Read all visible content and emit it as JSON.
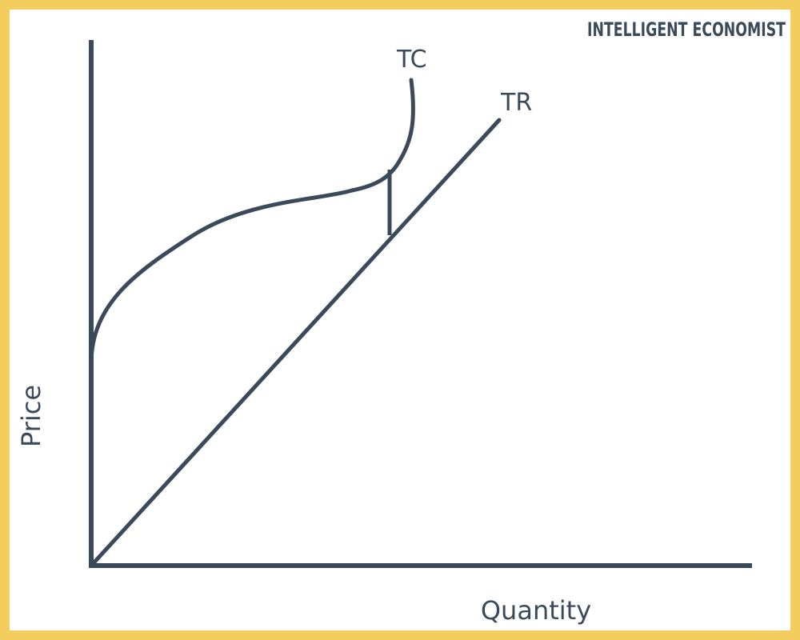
{
  "brand": "INTELLIGENT ECONOMIST",
  "colors": {
    "border": "#f3cd5e",
    "ink": "#3b4a5a",
    "background": "#ffffff"
  },
  "chart_data": {
    "type": "line",
    "title": "",
    "xlabel": "Quantity",
    "ylabel": "Price",
    "ticks": "none",
    "series": [
      {
        "name": "TC",
        "shape": "cubic cost curve starting at a positive intercept, flattening, then rising steeply"
      },
      {
        "name": "TR",
        "shape": "straight line from the origin"
      }
    ],
    "annotations": [
      {
        "type": "vertical-gap",
        "description": "vertical segment between TC and TR"
      }
    ]
  }
}
